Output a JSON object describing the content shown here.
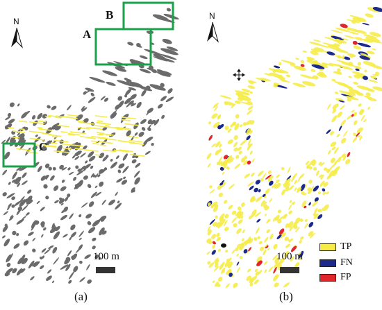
{
  "panels": [
    {
      "id": "a",
      "caption": "(a)"
    },
    {
      "id": "b",
      "caption": "(b)"
    }
  ],
  "north_arrow": {
    "label": "N",
    "icon": "north-arrow-icon"
  },
  "scale_bar": {
    "label": "100 m"
  },
  "boxes": [
    {
      "label": "A"
    },
    {
      "label": "B"
    },
    {
      "label": "C"
    }
  ],
  "legend": [
    {
      "label": "TP",
      "color": "#f5ec4a"
    },
    {
      "label": "FN",
      "color": "#1c2a8c"
    },
    {
      "label": "FP",
      "color": "#e0262b"
    }
  ],
  "colors": {
    "terrain": "#6b6b6b",
    "highlight_box": "#1aa14a",
    "tp": "#f5ec4a",
    "fn": "#1c2a8c",
    "fp": "#e0262b"
  }
}
